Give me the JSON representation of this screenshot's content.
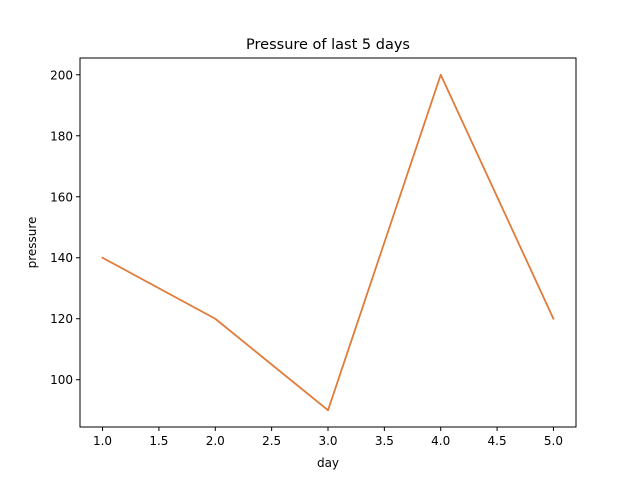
{
  "chart_data": {
    "type": "line",
    "title": "Pressure of last 5 days",
    "xlabel": "day",
    "ylabel": "pressure",
    "x": [
      1,
      2,
      3,
      4,
      5
    ],
    "series": [
      {
        "values": [
          140,
          120,
          90,
          200,
          120
        ],
        "color": "#e07b39"
      }
    ],
    "xlim": [
      0.8,
      5.2
    ],
    "ylim": [
      84.5,
      205.5
    ],
    "xticks": [
      1.0,
      1.5,
      2.0,
      2.5,
      3.0,
      3.5,
      4.0,
      4.5,
      5.0
    ],
    "xtick_labels": [
      "1.0",
      "1.5",
      "2.0",
      "2.5",
      "3.0",
      "3.5",
      "4.0",
      "4.5",
      "5.0"
    ],
    "yticks": [
      100,
      120,
      140,
      160,
      180,
      200
    ],
    "ytick_labels": [
      "100",
      "120",
      "140",
      "160",
      "180",
      "200"
    ],
    "grid": false,
    "legend": "none"
  }
}
